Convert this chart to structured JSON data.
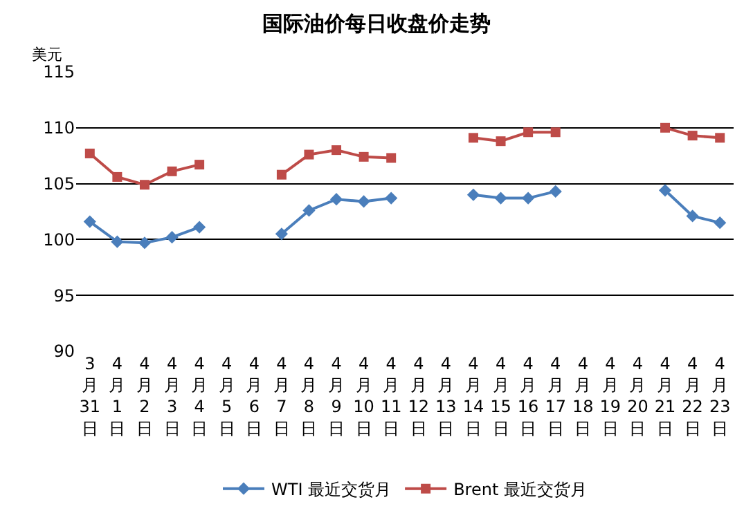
{
  "chart_data": {
    "type": "line",
    "title": "国际油价每日收盘价走势",
    "ylabel": "美元",
    "categories": [
      "3月31日",
      "4月1日",
      "4月2日",
      "4月3日",
      "4月4日",
      "4月5日",
      "4月6日",
      "4月7日",
      "4月8日",
      "4月9日",
      "4月10日",
      "4月11日",
      "4月12日",
      "4月13日",
      "4月14日",
      "4月15日",
      "4月16日",
      "4月17日",
      "4月18日",
      "4月19日",
      "4月20日",
      "4月21日",
      "4月22日",
      "4月23日"
    ],
    "series": [
      {
        "name": "WTI 最近交货月",
        "color": "#4a7ebb",
        "marker": "diamond",
        "values": [
          101.6,
          99.8,
          99.7,
          100.2,
          101.1,
          null,
          null,
          100.5,
          102.6,
          103.6,
          103.4,
          103.7,
          null,
          null,
          104.0,
          103.7,
          103.7,
          104.3,
          null,
          null,
          null,
          104.4,
          102.1,
          101.5
        ]
      },
      {
        "name": "Brent 最近交货月",
        "color": "#be4b48",
        "marker": "square",
        "values": [
          107.7,
          105.6,
          104.9,
          106.1,
          106.7,
          null,
          null,
          105.8,
          107.6,
          108.0,
          107.4,
          107.3,
          null,
          null,
          109.1,
          108.8,
          109.6,
          109.6,
          null,
          null,
          null,
          110.0,
          109.3,
          109.1
        ]
      }
    ],
    "ylim": [
      90,
      115
    ],
    "yticks": [
      90,
      95,
      100,
      105,
      110,
      115
    ],
    "grid": "y",
    "legend": "bottom",
    "line_style": "solid"
  }
}
